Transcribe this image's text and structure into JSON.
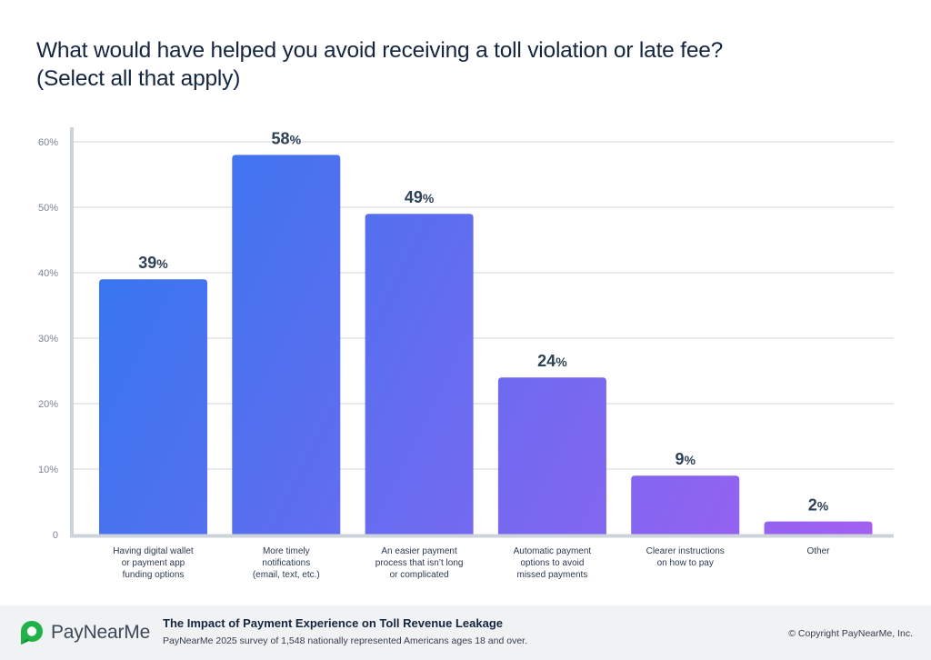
{
  "chart_data": {
    "type": "bar",
    "title": "What would have helped you avoid receiving a toll violation or late fee?",
    "subtitle": "(Select all that apply)",
    "xlabel": "",
    "ylabel": "",
    "categories": [
      [
        "Having digital wallet",
        "or payment app",
        "funding options"
      ],
      [
        "More timely",
        "notifications",
        "(email, text, etc.)"
      ],
      [
        "An easier payment",
        "process that isn’t long",
        "or complicated"
      ],
      [
        "Automatic payment",
        "options to avoid",
        "missed payments"
      ],
      [
        "Clearer instructions",
        "on how to pay"
      ],
      [
        "Other"
      ]
    ],
    "values": [
      39,
      58,
      49,
      24,
      9,
      2
    ],
    "data_labels": [
      "39",
      "58",
      "49",
      "24",
      "9",
      "2"
    ],
    "data_label_suffix": "%",
    "ylim": [
      0,
      60
    ],
    "yticks": [
      0,
      10,
      20,
      30,
      40,
      50,
      60
    ],
    "ytick_labels": [
      "0",
      "10%",
      "20%",
      "30%",
      "40%",
      "50%",
      "60%"
    ],
    "grid": true,
    "legend": "none",
    "colors": {
      "gradient_start": "#2f78ef",
      "gradient_end": "#a35ff0",
      "grid": "#e1e4e8",
      "axis": "#cdd3da",
      "data_label": "#2e4256"
    }
  },
  "footer": {
    "brand": "PayNearMe",
    "brand_color": "#1fb34a",
    "report_title": "The Impact of Payment Experience on Toll Revenue Leakage",
    "report_subtitle": "PayNearMe 2025 survey of 1,548 nationally represented Americans ages 18 and over.",
    "copyright": "© Copyright PayNearMe, Inc."
  }
}
